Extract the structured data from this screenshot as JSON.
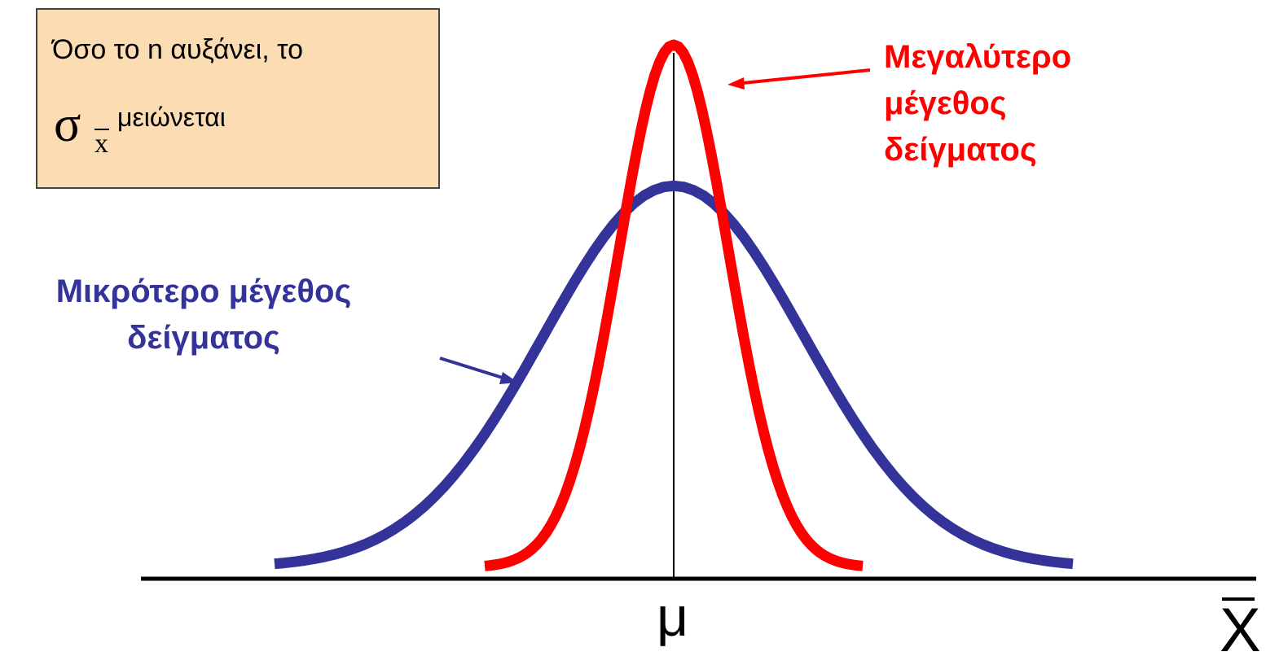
{
  "note": {
    "line1": "Όσο το n αυξάνει, το",
    "sigma_symbol": "σ",
    "sigma_subscript": "x",
    "line2_suffix": "μειώνεται",
    "background": "#fcdcb2"
  },
  "labels": {
    "large_sample": [
      "Μεγαλύτερο",
      "μέγεθος",
      "δείγματος"
    ],
    "small_sample": [
      "Μικρότερο μέγεθος",
      "δείγματος"
    ]
  },
  "axis": {
    "center_label": "μ",
    "x_label": "X"
  },
  "curves": {
    "large_sample_color": "#ff0000",
    "small_sample_color": "#333399",
    "large_sample_relative_spread": 0.42,
    "small_sample_relative_peak": 0.73
  }
}
